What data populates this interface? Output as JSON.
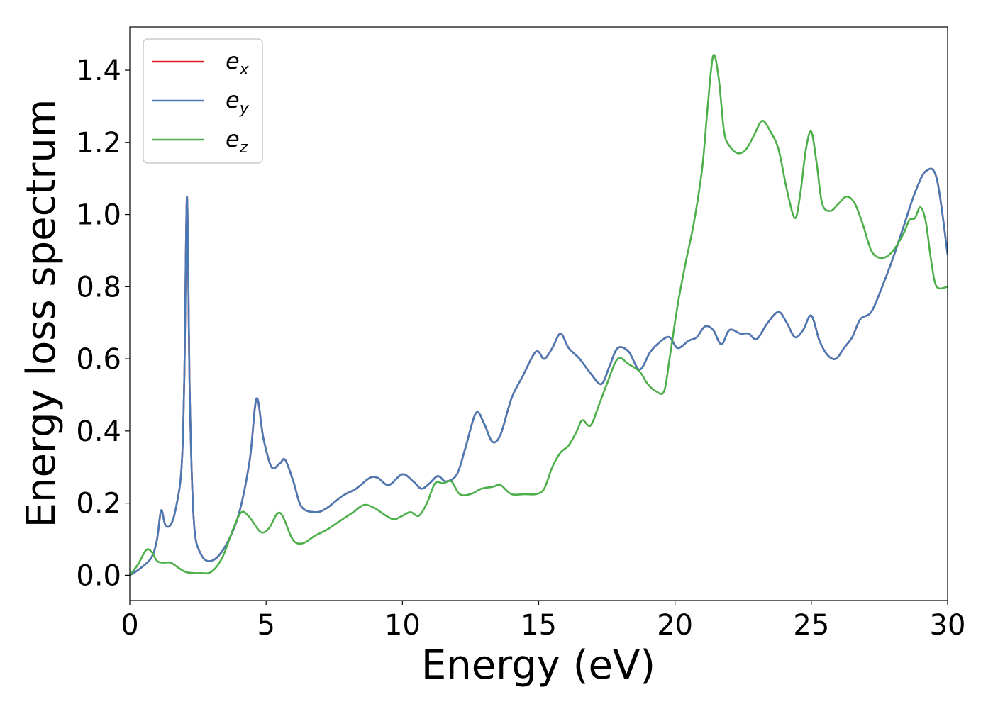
{
  "chart_data": {
    "type": "line",
    "title": "",
    "xlabel": "Energy (eV)",
    "ylabel": "Energy loss spectrum",
    "xlim": [
      0,
      30
    ],
    "ylim": [
      -0.07,
      1.52
    ],
    "xticks": [
      0,
      5,
      10,
      15,
      20,
      25,
      30
    ],
    "xtick_labels": [
      "0",
      "5",
      "10",
      "15",
      "20",
      "25",
      "30"
    ],
    "yticks": [
      0.0,
      0.2,
      0.4,
      0.6,
      0.8,
      1.0,
      1.2,
      1.4
    ],
    "ytick_labels": [
      "0.0",
      "0.2",
      "0.4",
      "0.6",
      "0.8",
      "1.0",
      "1.2",
      "1.4"
    ],
    "grid": false,
    "legend_position": "top-left",
    "series": [
      {
        "name": "e_x",
        "legend_base": "e",
        "legend_sub": "x",
        "color": "#e41a1c",
        "x": [
          0,
          0.4,
          0.8,
          1.0,
          1.15,
          1.3,
          1.5,
          1.7,
          1.9,
          2.0,
          2.1,
          2.2,
          2.35,
          2.6,
          3.0,
          3.5,
          4.0,
          4.4,
          4.65,
          4.9,
          5.2,
          5.5,
          5.7,
          6.0,
          6.3,
          6.8,
          7.2,
          7.8,
          8.3,
          8.8,
          9.1,
          9.5,
          10.0,
          10.4,
          10.7,
          11.0,
          11.3,
          11.6,
          12.0,
          12.3,
          12.7,
          13.0,
          13.3,
          13.6,
          14.0,
          14.4,
          14.9,
          15.2,
          15.5,
          15.8,
          16.1,
          16.5,
          16.9,
          17.3,
          17.6,
          17.9,
          18.3,
          18.7,
          19.1,
          19.5,
          19.8,
          20.1,
          20.5,
          20.8,
          21.1,
          21.4,
          21.7,
          22.0,
          22.4,
          22.7,
          23.0,
          23.4,
          23.8,
          24.1,
          24.4,
          24.7,
          25.0,
          25.3,
          25.6,
          25.9,
          26.2,
          26.5,
          26.8,
          27.2,
          27.6,
          28.0,
          28.4,
          28.8,
          29.2,
          29.6,
          30.0
        ],
        "y": [
          0.0,
          0.02,
          0.05,
          0.1,
          0.18,
          0.14,
          0.14,
          0.19,
          0.3,
          0.55,
          1.05,
          0.5,
          0.15,
          0.06,
          0.04,
          0.08,
          0.17,
          0.32,
          0.49,
          0.38,
          0.3,
          0.31,
          0.32,
          0.26,
          0.19,
          0.175,
          0.185,
          0.22,
          0.24,
          0.27,
          0.27,
          0.25,
          0.28,
          0.26,
          0.24,
          0.255,
          0.275,
          0.26,
          0.28,
          0.35,
          0.45,
          0.42,
          0.37,
          0.39,
          0.49,
          0.55,
          0.62,
          0.6,
          0.63,
          0.67,
          0.63,
          0.6,
          0.56,
          0.53,
          0.58,
          0.63,
          0.62,
          0.57,
          0.62,
          0.65,
          0.66,
          0.63,
          0.65,
          0.66,
          0.69,
          0.68,
          0.64,
          0.68,
          0.67,
          0.67,
          0.655,
          0.7,
          0.73,
          0.7,
          0.66,
          0.68,
          0.72,
          0.65,
          0.61,
          0.6,
          0.63,
          0.66,
          0.71,
          0.73,
          0.8,
          0.88,
          0.97,
          1.06,
          1.12,
          1.1,
          0.89
        ]
      },
      {
        "name": "e_y",
        "legend_base": "e",
        "legend_sub": "y",
        "color": "#4a7ab5",
        "x": [
          0,
          0.4,
          0.8,
          1.0,
          1.15,
          1.3,
          1.5,
          1.7,
          1.9,
          2.0,
          2.1,
          2.2,
          2.35,
          2.6,
          3.0,
          3.5,
          4.0,
          4.4,
          4.65,
          4.9,
          5.2,
          5.5,
          5.7,
          6.0,
          6.3,
          6.8,
          7.2,
          7.8,
          8.3,
          8.8,
          9.1,
          9.5,
          10.0,
          10.4,
          10.7,
          11.0,
          11.3,
          11.6,
          12.0,
          12.3,
          12.7,
          13.0,
          13.3,
          13.6,
          14.0,
          14.4,
          14.9,
          15.2,
          15.5,
          15.8,
          16.1,
          16.5,
          16.9,
          17.3,
          17.6,
          17.9,
          18.3,
          18.7,
          19.1,
          19.5,
          19.8,
          20.1,
          20.5,
          20.8,
          21.1,
          21.4,
          21.7,
          22.0,
          22.4,
          22.7,
          23.0,
          23.4,
          23.8,
          24.1,
          24.4,
          24.7,
          25.0,
          25.3,
          25.6,
          25.9,
          26.2,
          26.5,
          26.8,
          27.2,
          27.6,
          28.0,
          28.4,
          28.8,
          29.2,
          29.6,
          30.0
        ],
        "y": [
          0.0,
          0.02,
          0.05,
          0.1,
          0.18,
          0.14,
          0.14,
          0.19,
          0.3,
          0.55,
          1.05,
          0.5,
          0.15,
          0.06,
          0.04,
          0.08,
          0.17,
          0.32,
          0.49,
          0.38,
          0.3,
          0.31,
          0.32,
          0.26,
          0.19,
          0.175,
          0.185,
          0.22,
          0.24,
          0.27,
          0.27,
          0.25,
          0.28,
          0.26,
          0.24,
          0.255,
          0.275,
          0.26,
          0.28,
          0.35,
          0.45,
          0.42,
          0.37,
          0.39,
          0.49,
          0.55,
          0.62,
          0.6,
          0.63,
          0.67,
          0.63,
          0.6,
          0.56,
          0.53,
          0.58,
          0.63,
          0.62,
          0.57,
          0.62,
          0.65,
          0.66,
          0.63,
          0.65,
          0.66,
          0.69,
          0.68,
          0.64,
          0.68,
          0.67,
          0.67,
          0.655,
          0.7,
          0.73,
          0.7,
          0.66,
          0.68,
          0.72,
          0.65,
          0.61,
          0.6,
          0.63,
          0.66,
          0.71,
          0.73,
          0.8,
          0.88,
          0.97,
          1.06,
          1.12,
          1.1,
          0.89
        ]
      },
      {
        "name": "e_z",
        "legend_base": "e",
        "legend_sub": "z",
        "color": "#4daf4a",
        "x": [
          0,
          0.3,
          0.6,
          0.8,
          1.0,
          1.2,
          1.5,
          1.8,
          2.1,
          2.6,
          3.0,
          3.4,
          3.8,
          4.1,
          4.4,
          4.8,
          5.1,
          5.4,
          5.6,
          5.9,
          6.1,
          6.4,
          6.8,
          7.2,
          7.7,
          8.2,
          8.6,
          9.0,
          9.4,
          9.7,
          10.0,
          10.3,
          10.6,
          10.9,
          11.2,
          11.5,
          11.8,
          12.1,
          12.5,
          12.9,
          13.3,
          13.6,
          14.0,
          14.5,
          14.9,
          15.2,
          15.5,
          15.8,
          16.1,
          16.4,
          16.6,
          16.9,
          17.2,
          17.5,
          17.9,
          18.3,
          18.7,
          19.0,
          19.3,
          19.6,
          19.8,
          20.1,
          20.4,
          20.7,
          21.0,
          21.2,
          21.4,
          21.6,
          21.8,
          22.0,
          22.3,
          22.6,
          22.9,
          23.2,
          23.5,
          23.8,
          24.1,
          24.4,
          24.6,
          24.8,
          25.0,
          25.2,
          25.4,
          25.7,
          26.0,
          26.3,
          26.6,
          26.9,
          27.2,
          27.5,
          27.8,
          28.1,
          28.4,
          28.6,
          28.8,
          29.0,
          29.2,
          29.4,
          29.6,
          30.0
        ],
        "y": [
          0.0,
          0.03,
          0.07,
          0.065,
          0.04,
          0.035,
          0.035,
          0.02,
          0.008,
          0.006,
          0.01,
          0.05,
          0.13,
          0.175,
          0.16,
          0.12,
          0.13,
          0.17,
          0.165,
          0.11,
          0.09,
          0.09,
          0.11,
          0.125,
          0.15,
          0.175,
          0.195,
          0.185,
          0.165,
          0.155,
          0.165,
          0.175,
          0.165,
          0.2,
          0.255,
          0.255,
          0.26,
          0.225,
          0.225,
          0.24,
          0.245,
          0.25,
          0.225,
          0.225,
          0.225,
          0.24,
          0.3,
          0.34,
          0.36,
          0.4,
          0.43,
          0.415,
          0.47,
          0.53,
          0.6,
          0.585,
          0.565,
          0.53,
          0.51,
          0.51,
          0.6,
          0.75,
          0.87,
          0.98,
          1.13,
          1.3,
          1.44,
          1.38,
          1.23,
          1.19,
          1.17,
          1.18,
          1.22,
          1.26,
          1.23,
          1.18,
          1.07,
          0.99,
          1.06,
          1.18,
          1.23,
          1.14,
          1.03,
          1.01,
          1.03,
          1.05,
          1.03,
          0.97,
          0.9,
          0.88,
          0.885,
          0.91,
          0.95,
          0.985,
          0.99,
          1.02,
          0.98,
          0.87,
          0.8,
          0.8
        ]
      }
    ]
  }
}
